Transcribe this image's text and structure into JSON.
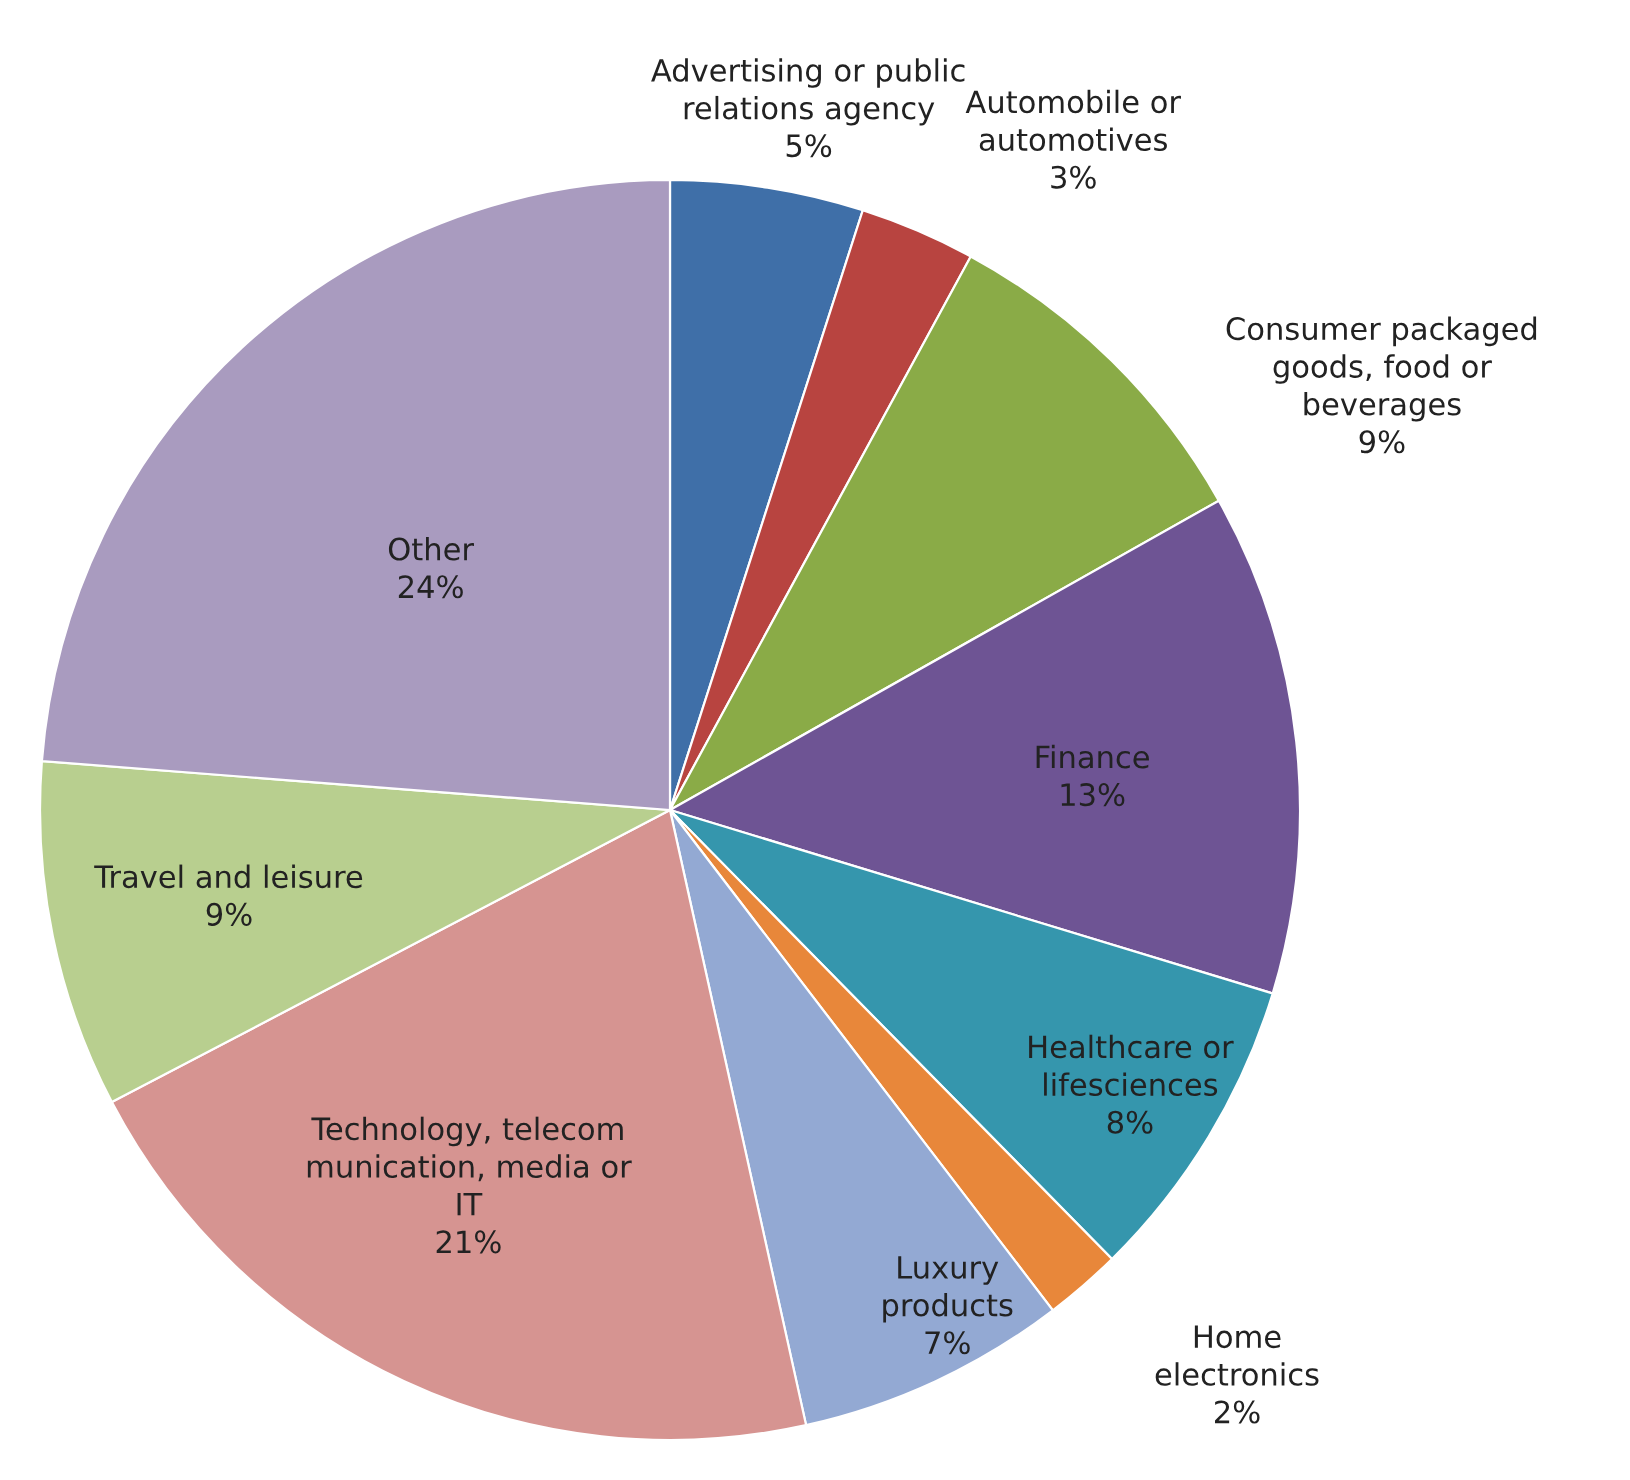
{
  "chart_data": {
    "type": "pie",
    "categories": [
      "Advertising or public\nrelations agency",
      "Automobile or\nautomotives",
      "Consumer packaged\ngoods, food or\nbeverages",
      "Finance",
      "Healthcare or\nlifesciences",
      "Home\nelectronics",
      "Luxury\nproducts",
      "Technology, telecom\nmunication, media or\nIT",
      "Travel and leisure",
      "Other"
    ],
    "values": [
      5,
      3,
      9,
      13,
      8,
      2,
      7,
      21,
      9,
      24
    ],
    "value_labels": [
      "5%",
      "3%",
      "9%",
      "13%",
      "8%",
      "2%",
      "7%",
      "21%",
      "9%",
      "24%"
    ],
    "colors": [
      "#3f6fa8",
      "#b84440",
      "#8aab47",
      "#6e5494",
      "#3596ad",
      "#e8873a",
      "#93a9d3",
      "#d69491",
      "#b8cf8f",
      "#a99bbf"
    ]
  }
}
